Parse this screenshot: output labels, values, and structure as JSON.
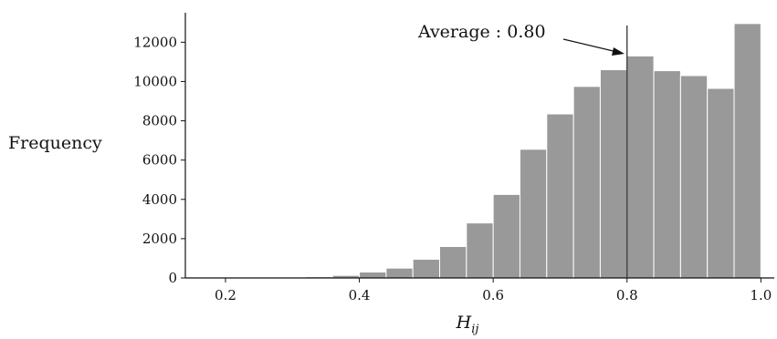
{
  "chart_data": {
    "type": "bar",
    "xlabel_main": "H",
    "xlabel_sub": "ij",
    "ylabel": "Frequency",
    "xlim": [
      0.14,
      1.02
    ],
    "ylim": [
      0,
      13500
    ],
    "bin_width": 0.04,
    "bins": [
      {
        "x0": 0.2,
        "value": 10
      },
      {
        "x0": 0.24,
        "value": 15
      },
      {
        "x0": 0.28,
        "value": 25
      },
      {
        "x0": 0.32,
        "value": 60
      },
      {
        "x0": 0.36,
        "value": 130
      },
      {
        "x0": 0.4,
        "value": 300
      },
      {
        "x0": 0.44,
        "value": 500
      },
      {
        "x0": 0.48,
        "value": 950
      },
      {
        "x0": 0.52,
        "value": 1600
      },
      {
        "x0": 0.56,
        "value": 2800
      },
      {
        "x0": 0.6,
        "value": 4250
      },
      {
        "x0": 0.64,
        "value": 6550
      },
      {
        "x0": 0.68,
        "value": 8350
      },
      {
        "x0": 0.72,
        "value": 9750
      },
      {
        "x0": 0.76,
        "value": 10600
      },
      {
        "x0": 0.8,
        "value": 11300
      },
      {
        "x0": 0.84,
        "value": 10550
      },
      {
        "x0": 0.88,
        "value": 10300
      },
      {
        "x0": 0.92,
        "value": 9650
      },
      {
        "x0": 0.96,
        "value": 12950
      }
    ],
    "x_ticks": [
      0.2,
      0.4,
      0.6,
      0.8,
      1.0
    ],
    "x_tick_labels": [
      "0.2",
      "0.4",
      "0.6",
      "0.8",
      "1.0"
    ],
    "y_ticks": [
      0,
      2000,
      4000,
      6000,
      8000,
      10000,
      12000
    ],
    "y_tick_labels": [
      "0",
      "2000",
      "4000",
      "6000",
      "8000",
      "10000",
      "12000"
    ],
    "average": {
      "value": 0.8,
      "label": "Average : 0.80"
    },
    "grid": false,
    "colors": {
      "bar": "#999999",
      "bar_edge": "#ffffff",
      "axis": "#111111",
      "average_line": "#333333"
    }
  }
}
